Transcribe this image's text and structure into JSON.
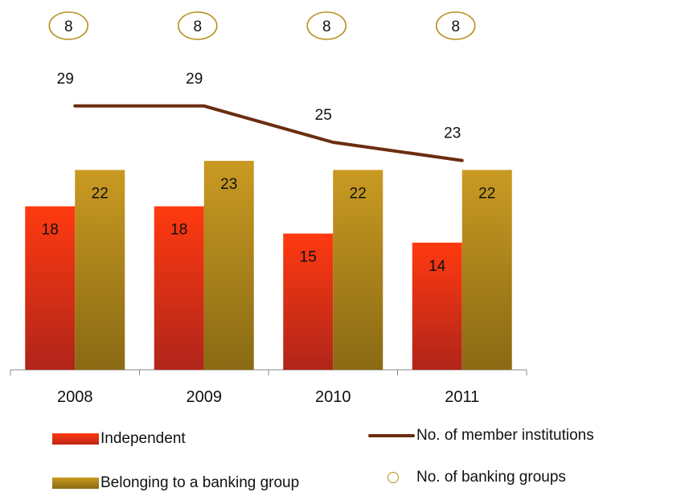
{
  "colors": {
    "independent": "#e52e10",
    "banking_group": "#b8901e",
    "line": "#6b2d0f",
    "circle": "#b8901e"
  },
  "chart_data": {
    "type": "bar",
    "categories": [
      "2008",
      "2009",
      "2010",
      "2011"
    ],
    "series": [
      {
        "name": "Independent",
        "values": [
          18,
          18,
          15,
          14
        ]
      },
      {
        "name": "Belonging to a banking group",
        "values": [
          22,
          23,
          22,
          22
        ]
      }
    ],
    "line_series": {
      "name": "No. of member institutions",
      "values": [
        29,
        29,
        25,
        23
      ]
    },
    "circle_series": {
      "name": "No. of banking groups",
      "values": [
        8,
        8,
        8,
        8
      ]
    },
    "title": "",
    "xlabel": "",
    "ylabel": "",
    "ylim": [
      0,
      36
    ],
    "grid": false,
    "legend_position": "bottom"
  },
  "legend": {
    "independent": "Independent",
    "banking_group": "Belonging to a banking group",
    "member_institutions": "No. of member institutions",
    "banking_groups": "No. of banking groups"
  }
}
